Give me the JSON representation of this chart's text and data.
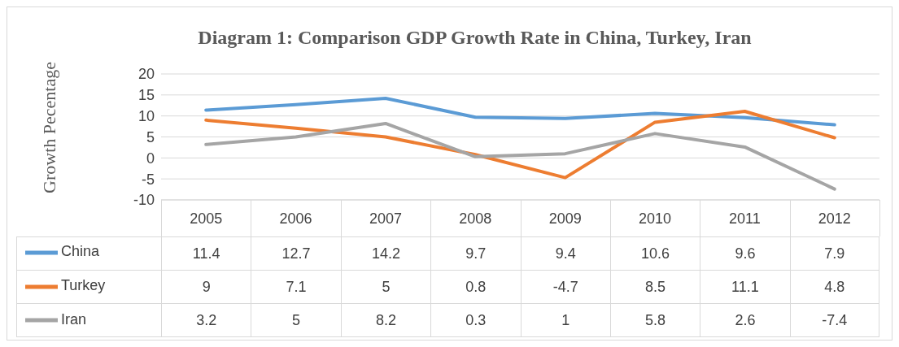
{
  "chart_data": {
    "type": "line",
    "title": "Diagram 1: Comparison GDP Growth Rate in China, Turkey, Iran",
    "ylabel": "Growth Pecentage",
    "categories": [
      "2005",
      "2006",
      "2007",
      "2008",
      "2009",
      "2010",
      "2011",
      "2012"
    ],
    "series": [
      {
        "name": "China",
        "color": "#5b9bd5",
        "values": [
          11.4,
          12.7,
          14.2,
          9.7,
          9.4,
          10.6,
          9.6,
          7.9
        ]
      },
      {
        "name": "Turkey",
        "color": "#ed7d31",
        "values": [
          9,
          7.1,
          5,
          0.8,
          -4.7,
          8.5,
          11.1,
          4.8
        ]
      },
      {
        "name": "Iran",
        "color": "#a5a5a5",
        "values": [
          3.2,
          5,
          8.2,
          0.3,
          1,
          5.8,
          2.6,
          -7.4
        ]
      }
    ],
    "ylim": [
      -10,
      20
    ],
    "yticks": [
      -10,
      -5,
      0,
      5,
      10,
      15,
      20
    ],
    "grid": "y",
    "legend": "bottom",
    "data_labels": true,
    "marker": "none",
    "line_style": "solid"
  }
}
